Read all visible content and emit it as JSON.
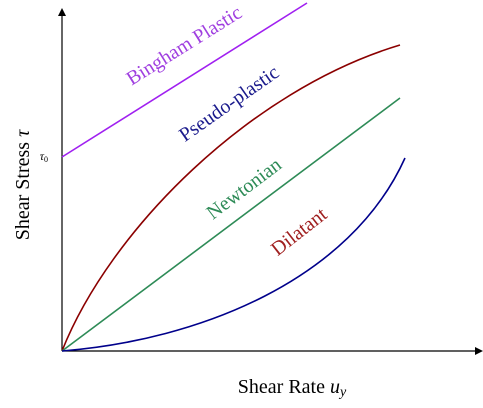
{
  "axes": {
    "y_label": {
      "text": "Shear Stress",
      "var": "τ"
    },
    "x_label": {
      "text": "Shear Rate",
      "var": "u",
      "sub": "y"
    },
    "y_mark": {
      "var": "τ",
      "sub": "0"
    }
  },
  "curves": [
    {
      "label": "Bingham Plastic"
    },
    {
      "label": "Pseudo-plastic"
    },
    {
      "label": "Newtonian"
    },
    {
      "label": "Dilatant"
    }
  ]
}
